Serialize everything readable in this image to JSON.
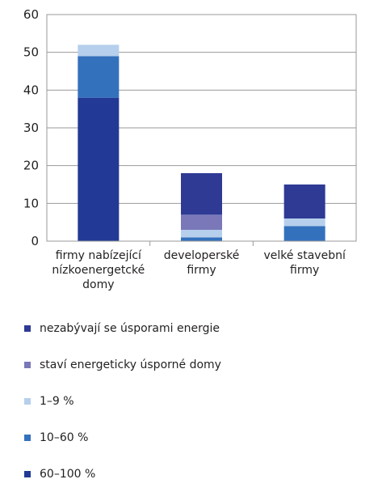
{
  "chart_data": {
    "type": "bar",
    "stacked": true,
    "categories": [
      [
        "firmy nabízející",
        "nízkoenergetcké",
        "domy"
      ],
      [
        "developerské",
        "firmy"
      ],
      [
        "velké stavební",
        "firmy"
      ]
    ],
    "series": [
      {
        "name": "60–100 %",
        "color": "#223a95",
        "values": [
          38,
          0,
          0
        ]
      },
      {
        "name": "10–60 %",
        "color": "#3471bd",
        "values": [
          11,
          1,
          4
        ]
      },
      {
        "name": "1–9 %",
        "color": "#b6cfec",
        "values": [
          3,
          2,
          2
        ]
      },
      {
        "name": "staví energeticky úsporné domy",
        "color": "#7a78b9",
        "values": [
          0,
          4,
          0
        ]
      },
      {
        "name": "nezabývají se úsporami energie",
        "color": "#2e3a94",
        "values": [
          0,
          11,
          9
        ]
      }
    ],
    "ylim": [
      0,
      60
    ],
    "yticks": [
      "0",
      "10",
      "20",
      "30",
      "40",
      "50",
      "60"
    ],
    "grid": "horizontal",
    "legend": "bottom",
    "legend_order": [
      {
        "label": "nezabývají se úsporami energie",
        "color": "#2e3a94"
      },
      {
        "label": "staví energeticky úsporné domy",
        "color": "#7a78b9"
      },
      {
        "label": "1–9 %",
        "color": "#b6cfec"
      },
      {
        "label": "10–60 %",
        "color": "#3471bd"
      },
      {
        "label": "60–100 %",
        "color": "#223a95"
      }
    ]
  }
}
